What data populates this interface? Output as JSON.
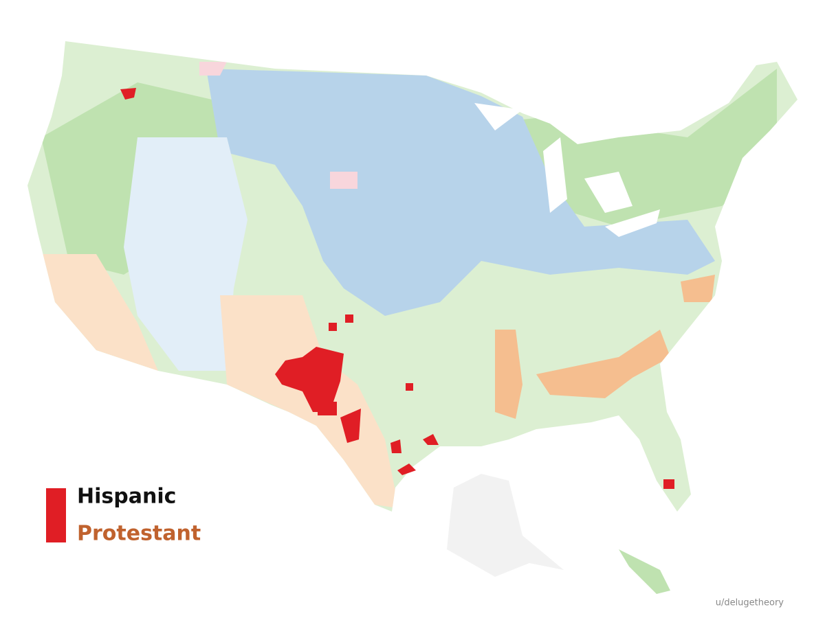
{
  "legend": {
    "items": [
      "Hispanic",
      "Protestant"
    ]
  },
  "credit": "u/delugetheory"
}
